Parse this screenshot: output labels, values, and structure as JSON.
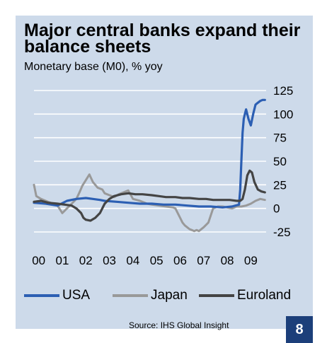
{
  "title": "Major central banks expand their balance sheets",
  "subtitle": "Monetary base (M0), % yoy",
  "source": "Source: IHS Global Insight",
  "page_number": "8",
  "colors": {
    "background": "#cddaea",
    "usa": "#2c5fb3",
    "japan": "#999999",
    "euroland": "#444444",
    "grid": "#ffffff",
    "page_box": "#1c3f7a"
  },
  "chart_data": {
    "type": "line",
    "title": "Major central banks expand their balance sheets",
    "subtitle": "Monetary base (M0), % yoy",
    "x_tick_labels": [
      "00",
      "01",
      "02",
      "03",
      "04",
      "05",
      "06",
      "07",
      "08",
      "09"
    ],
    "x_ticks": [
      2000,
      2001,
      2002,
      2003,
      2004,
      2005,
      2006,
      2007,
      2008,
      2009
    ],
    "xlim": [
      2000,
      2009.85
    ],
    "y_ticks": [
      125,
      100,
      75,
      50,
      25,
      0,
      -25
    ],
    "ylim": [
      -25,
      125
    ],
    "y_axis_side": "right",
    "grid": true,
    "legend_position": "bottom",
    "series": [
      {
        "name": "USA",
        "color": "#2c5fb3",
        "x": [
          2000.0,
          2000.5,
          2001.0,
          2001.4,
          2001.8,
          2002.2,
          2002.5,
          2002.8,
          2003.0,
          2003.5,
          2004.0,
          2004.5,
          2005.0,
          2005.5,
          2006.0,
          2006.5,
          2007.0,
          2007.5,
          2008.0,
          2008.4,
          2008.7,
          2008.75,
          2008.8,
          2008.85,
          2008.9,
          2008.95,
          2009.0,
          2009.1,
          2009.2,
          2009.3,
          2009.4,
          2009.5,
          2009.6,
          2009.7,
          2009.8
        ],
        "y": [
          6,
          5,
          3,
          8,
          10,
          11,
          10,
          9,
          8,
          7,
          6,
          5,
          5,
          4,
          4,
          3,
          2,
          2,
          1,
          2,
          4,
          20,
          50,
          80,
          95,
          100,
          105,
          95,
          88,
          100,
          110,
          112,
          114,
          115,
          115
        ]
      },
      {
        "name": "Japan",
        "color": "#999999",
        "x": [
          2000.0,
          2000.1,
          2000.3,
          2000.5,
          2000.8,
          2001.0,
          2001.2,
          2001.4,
          2001.6,
          2001.8,
          2001.95,
          2002.05,
          2002.2,
          2002.35,
          2002.5,
          2002.7,
          2002.9,
          2003.0,
          2003.2,
          2003.4,
          2003.6,
          2003.8,
          2004.0,
          2004.2,
          2004.5,
          2004.8,
          2005.0,
          2005.3,
          2005.6,
          2005.9,
          2006.0,
          2006.1,
          2006.2,
          2006.3,
          2006.4,
          2006.5,
          2006.6,
          2006.7,
          2006.8,
          2006.9,
          2007.0,
          2007.2,
          2007.4,
          2007.6,
          2007.8,
          2008.0,
          2008.2,
          2008.4,
          2008.6,
          2008.8,
          2009.0,
          2009.2,
          2009.4,
          2009.6,
          2009.8
        ],
        "y": [
          25,
          13,
          10,
          8,
          5,
          3,
          -5,
          0,
          5,
          10,
          18,
          24,
          30,
          36,
          28,
          22,
          20,
          16,
          14,
          12,
          15,
          17,
          19,
          10,
          8,
          5,
          4,
          3,
          2,
          1,
          0,
          -5,
          -10,
          -15,
          -18,
          -20,
          -22,
          -23,
          -24,
          -23,
          -24,
          -20,
          -15,
          0,
          2,
          2,
          1,
          0,
          2,
          2,
          3,
          5,
          8,
          10,
          9
        ]
      },
      {
        "name": "Euroland",
        "color": "#444444",
        "x": [
          2000.0,
          2000.3,
          2000.6,
          2001.0,
          2001.3,
          2001.6,
          2001.8,
          2002.0,
          2002.1,
          2002.2,
          2002.4,
          2002.6,
          2002.8,
          2003.0,
          2003.2,
          2003.4,
          2003.7,
          2004.0,
          2004.3,
          2004.6,
          2005.0,
          2005.3,
          2005.6,
          2006.0,
          2006.3,
          2006.6,
          2007.0,
          2007.3,
          2007.6,
          2008.0,
          2008.3,
          2008.6,
          2008.75,
          2008.85,
          2008.95,
          2009.05,
          2009.15,
          2009.25,
          2009.35,
          2009.5,
          2009.65,
          2009.8
        ],
        "y": [
          7,
          8,
          6,
          5,
          4,
          3,
          0,
          -5,
          -10,
          -12,
          -13,
          -10,
          -5,
          5,
          10,
          13,
          15,
          16,
          15,
          15,
          14,
          13,
          12,
          12,
          11,
          11,
          10,
          10,
          9,
          9,
          9,
          8,
          8,
          10,
          20,
          35,
          40,
          38,
          28,
          20,
          18,
          17
        ]
      }
    ]
  },
  "legend": [
    {
      "label": "USA",
      "color": "#2c5fb3"
    },
    {
      "label": "Japan",
      "color": "#999999"
    },
    {
      "label": "Euroland",
      "color": "#444444"
    }
  ]
}
